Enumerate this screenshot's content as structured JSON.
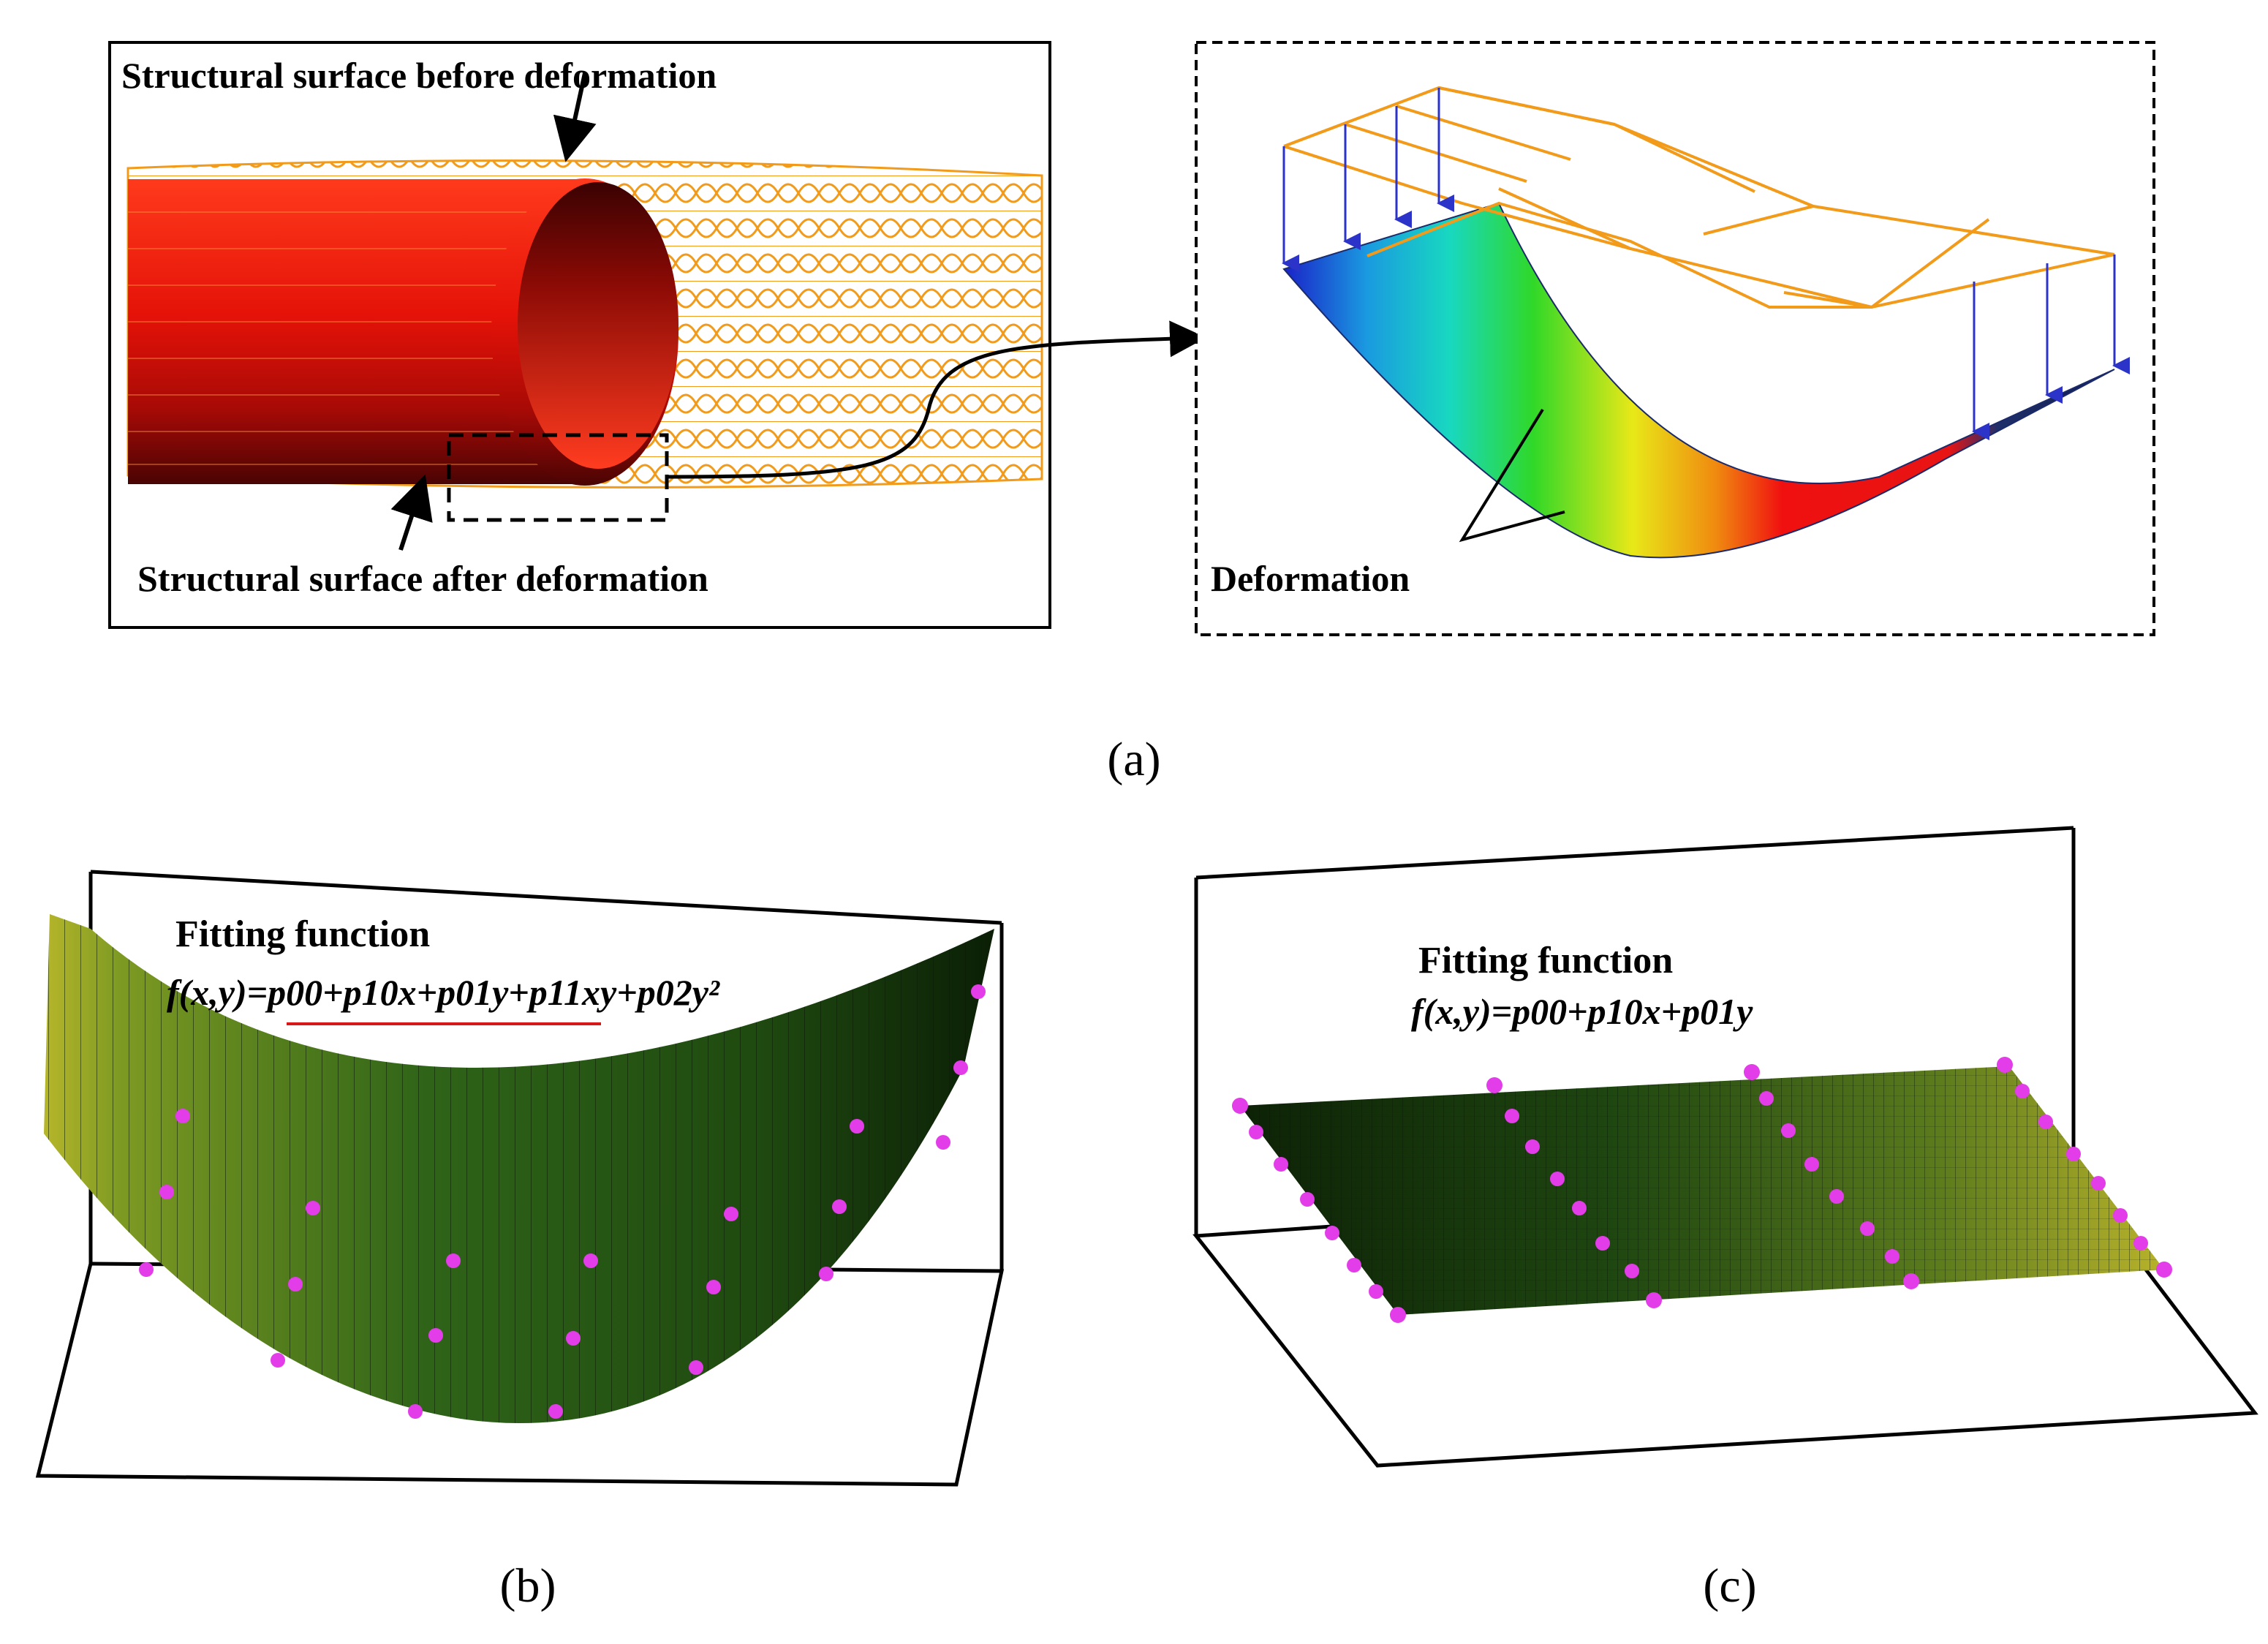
{
  "panel_a": {
    "label_before": "Structural surface before deformation",
    "label_after": "Structural surface after deformation",
    "label_deformation": "Deformation",
    "caption": "(a)"
  },
  "panel_b": {
    "title": "Fitting function",
    "formula": "f(x,y)=p00+p10x+p01y+p11xy+p02y²",
    "caption": "(b)"
  },
  "panel_c": {
    "title": "Fitting function",
    "formula": "f(x,y)=p00+p10x+p01y",
    "caption": "(c)"
  },
  "colors": {
    "wire": "#f29a1a",
    "tube": "#e8160c",
    "marker": "#e23de8",
    "surface_dark": "#0d2208",
    "surface_light": "#b4b624",
    "underline": "#d81818"
  }
}
